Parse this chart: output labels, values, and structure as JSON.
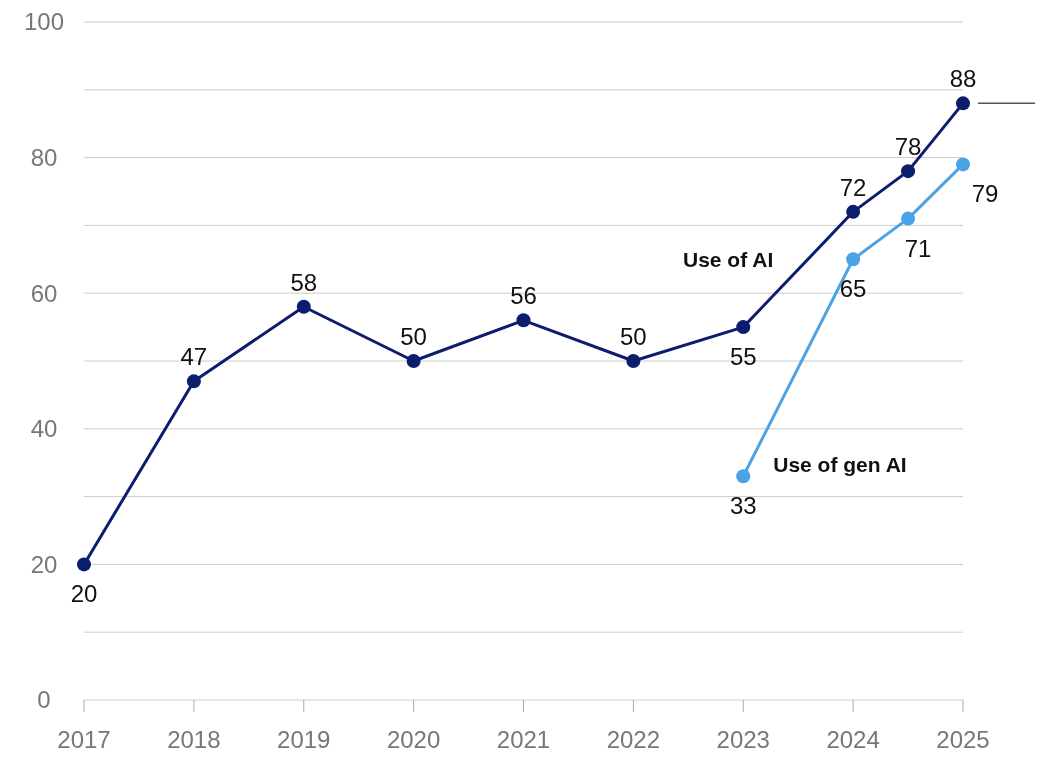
{
  "chart_data": {
    "type": "line",
    "x": [
      2017,
      2018,
      2019,
      2020,
      2021,
      2022,
      2023,
      2024,
      2024.5,
      2025
    ],
    "series": [
      {
        "name": "Use of AI",
        "color": "#0c1d6e",
        "values": [
          20,
          47,
          58,
          50,
          56,
          50,
          55,
          72,
          78,
          88
        ]
      },
      {
        "name": "Use of gen AI",
        "color": "#4ba3e6",
        "x": [
          2023,
          2024,
          2024.5,
          2025
        ],
        "values": [
          33,
          65,
          71,
          79
        ]
      }
    ],
    "xlim": [
      2017,
      2025
    ],
    "xticks": [
      2017,
      2018,
      2019,
      2020,
      2021,
      2022,
      2023,
      2024,
      2025
    ],
    "ylim": [
      0,
      100
    ],
    "yticks": [
      0,
      {
        "value": 10,
        "label": null
      },
      20,
      {
        "value": 30,
        "label": null
      },
      40,
      {
        "value": 50,
        "label": null
      },
      60,
      {
        "value": 70,
        "label": null
      },
      80,
      {
        "value": 90,
        "label": null
      },
      100
    ],
    "grid": "y",
    "marker": "circle",
    "line_style": "solid",
    "data_labels": true
  }
}
